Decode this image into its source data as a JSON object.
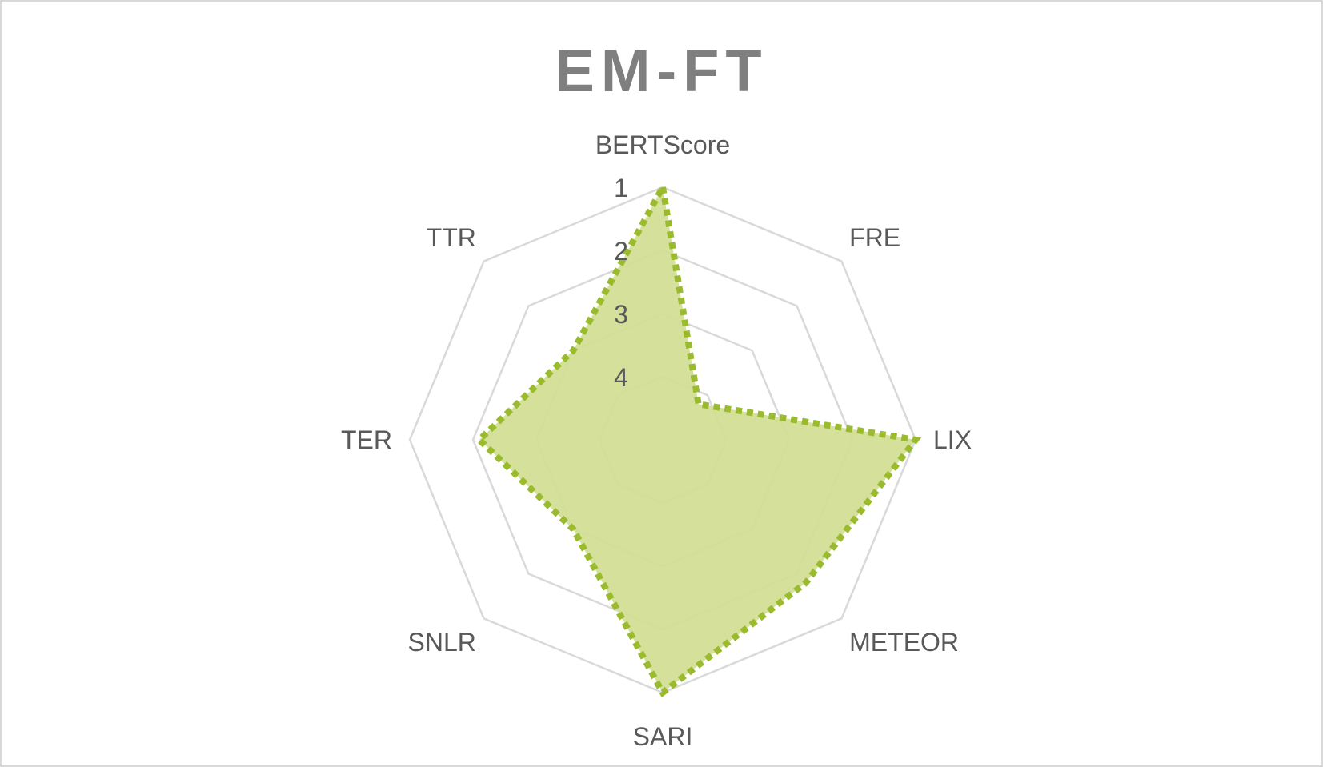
{
  "chart_data": {
    "type": "radar",
    "title": "EM-FT",
    "axes": [
      "BERTScore",
      "FRE",
      "LIX",
      "METEOR",
      "SARI",
      "SNLR",
      "TER",
      "TTR"
    ],
    "tick_labels": [
      "1",
      "2",
      "3",
      "4"
    ],
    "scale": {
      "outer": 1,
      "inner": 5,
      "reversed": true
    },
    "series": [
      {
        "values": [
          1.0,
          4.2,
          1.0,
          1.8,
          1.0,
          3.0,
          2.1,
          3.0
        ],
        "fill_color": "#d3de95",
        "line_color": "#9bbb2f",
        "line_style": "dotted"
      }
    ],
    "grid": true,
    "legend": "none"
  },
  "colors": {
    "grid": "#d9d9d9",
    "text": "#595959",
    "title": "#7f7f7f",
    "border": "#d9d9d9"
  }
}
